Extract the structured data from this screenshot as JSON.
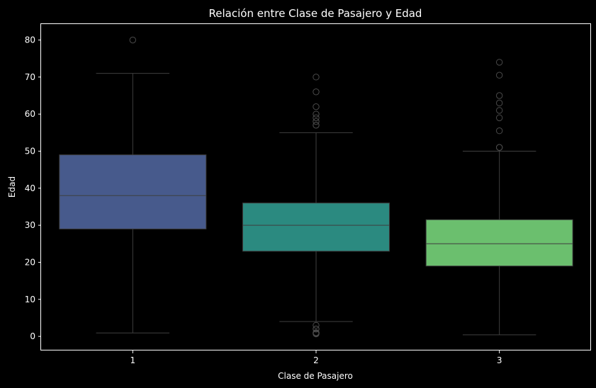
{
  "chart_data": {
    "type": "box",
    "title": "Relación entre Clase de Pasajero y Edad",
    "xlabel": "Clase de Pasajero",
    "ylabel": "Edad",
    "ylim": [
      -3.8,
      84.3
    ],
    "yticks": [
      0,
      10,
      20,
      30,
      40,
      50,
      60,
      70,
      80
    ],
    "grid": false,
    "legend": "none",
    "categories": [
      "1",
      "2",
      "3"
    ],
    "boxes": [
      {
        "category": "1",
        "color": "#475a8c",
        "whisker_low": 0.92,
        "q1": 29,
        "median": 38,
        "q3": 49,
        "whisker_high": 71,
        "outliers": [
          80
        ]
      },
      {
        "category": "2",
        "color": "#2b8a80",
        "whisker_low": 4,
        "q1": 23,
        "median": 30,
        "q3": 36,
        "whisker_high": 55,
        "outliers": [
          0.67,
          0.83,
          0.83,
          1,
          1,
          2,
          2,
          3,
          57,
          57,
          58,
          59,
          60,
          62,
          66,
          70
        ]
      },
      {
        "category": "3",
        "color": "#6bbf6e",
        "whisker_low": 0.42,
        "q1": 19,
        "median": 25,
        "q3": 31.5,
        "whisker_high": 50,
        "outliers": [
          51,
          51,
          55.5,
          59,
          61,
          63,
          65,
          70.5,
          74
        ]
      }
    ]
  }
}
